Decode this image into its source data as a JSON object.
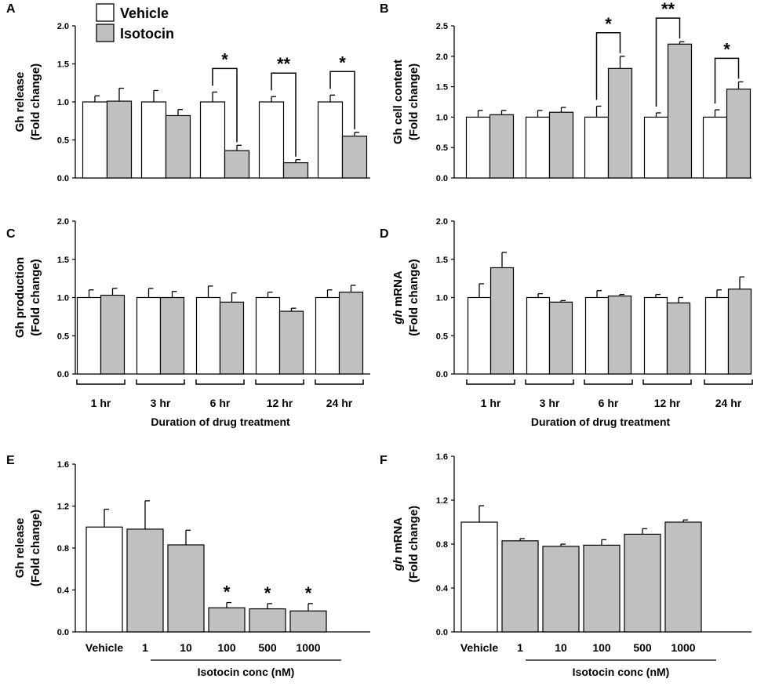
{
  "figure": {
    "legend": [
      {
        "label": "Vehicle",
        "color": "#ffffff"
      },
      {
        "label": "Isotocin",
        "color": "#c0c0c0"
      }
    ],
    "colors": {
      "vehicle": "#ffffff",
      "isotocin": "#c0c0c0",
      "stroke": "#000000"
    }
  },
  "chart_data": [
    {
      "panel": "A",
      "type": "bar",
      "ylabel_lines": [
        "Gh release",
        "(Fold change)"
      ],
      "categories": [
        "1 hr",
        "3 hr",
        "6 hr",
        "12 hr",
        "24 hr"
      ],
      "ylim": [
        0,
        2.0
      ],
      "yticks": [
        "0.0",
        "0.5",
        "1.0",
        "1.5",
        "2.0"
      ],
      "series": [
        {
          "name": "Vehicle",
          "values": [
            1.0,
            1.0,
            1.0,
            1.0,
            1.0
          ],
          "errors": [
            0.08,
            0.15,
            0.13,
            0.07,
            0.09
          ]
        },
        {
          "name": "Isotocin",
          "values": [
            1.01,
            0.82,
            0.36,
            0.2,
            0.55
          ],
          "errors": [
            0.17,
            0.08,
            0.07,
            0.04,
            0.05
          ]
        }
      ],
      "significance": [
        null,
        null,
        "*",
        "**",
        "*"
      ],
      "xlabel": ""
    },
    {
      "panel": "B",
      "type": "bar",
      "ylabel_lines": [
        "Gh cell content",
        "(Fold change)"
      ],
      "categories": [
        "1 hr",
        "3 hr",
        "6 hr",
        "12 hr",
        "24 hr"
      ],
      "ylim": [
        0,
        2.5
      ],
      "yticks": [
        "0.0",
        "0.5",
        "1.0",
        "1.5",
        "2.0",
        "2.5"
      ],
      "series": [
        {
          "name": "Vehicle",
          "values": [
            1.0,
            1.0,
            1.0,
            1.0,
            1.0
          ],
          "errors": [
            0.11,
            0.11,
            0.18,
            0.07,
            0.12
          ]
        },
        {
          "name": "Isotocin",
          "values": [
            1.04,
            1.08,
            1.8,
            2.2,
            1.46
          ],
          "errors": [
            0.07,
            0.08,
            0.2,
            0.04,
            0.12
          ]
        }
      ],
      "significance": [
        null,
        null,
        "*",
        "**",
        "*"
      ],
      "xlabel": ""
    },
    {
      "panel": "C",
      "type": "bar",
      "ylabel_lines": [
        "Gh production",
        "(Fold change)"
      ],
      "categories": [
        "1 hr",
        "3 hr",
        "6 hr",
        "12 hr",
        "24 hr"
      ],
      "ylim": [
        0,
        2.0
      ],
      "yticks": [
        "0.0",
        "0.5",
        "1.0",
        "1.5",
        "2.0"
      ],
      "series": [
        {
          "name": "Vehicle",
          "values": [
            1.0,
            1.0,
            1.0,
            1.0,
            1.0
          ],
          "errors": [
            0.1,
            0.12,
            0.15,
            0.07,
            0.1
          ]
        },
        {
          "name": "Isotocin",
          "values": [
            1.03,
            1.0,
            0.94,
            0.82,
            1.07
          ],
          "errors": [
            0.09,
            0.08,
            0.12,
            0.04,
            0.09
          ]
        }
      ],
      "significance": [
        null,
        null,
        null,
        null,
        null
      ],
      "xlabel": "Duration of drug treatment"
    },
    {
      "panel": "D",
      "type": "bar",
      "ylabel_lines": [
        "gh mRNA",
        "(Fold change)"
      ],
      "ylabel_italic_prefix": "gh",
      "categories": [
        "1 hr",
        "3 hr",
        "6 hr",
        "12 hr",
        "24 hr"
      ],
      "ylim": [
        0,
        2.0
      ],
      "yticks": [
        "0.0",
        "0.5",
        "1.0",
        "1.5",
        "2.0"
      ],
      "series": [
        {
          "name": "Vehicle",
          "values": [
            1.0,
            1.0,
            1.0,
            1.0,
            1.0
          ],
          "errors": [
            0.18,
            0.05,
            0.09,
            0.04,
            0.1
          ]
        },
        {
          "name": "Isotocin",
          "values": [
            1.39,
            0.94,
            1.02,
            0.93,
            1.11
          ],
          "errors": [
            0.2,
            0.02,
            0.02,
            0.07,
            0.16
          ]
        }
      ],
      "significance": [
        null,
        null,
        null,
        null,
        null
      ],
      "xlabel": "Duration of drug treatment"
    },
    {
      "panel": "E",
      "type": "bar",
      "ylabel_lines": [
        "Gh release",
        "(Fold change)"
      ],
      "categories": [
        "Vehicle",
        "1",
        "10",
        "100",
        "500",
        "1000"
      ],
      "ylim": [
        0,
        1.6
      ],
      "yticks": [
        "0.0",
        "0.4",
        "0.8",
        "1.2",
        "1.6"
      ],
      "values": [
        1.0,
        0.98,
        0.83,
        0.23,
        0.22,
        0.2
      ],
      "errors": [
        0.17,
        0.27,
        0.14,
        0.05,
        0.05,
        0.07
      ],
      "significance": [
        null,
        null,
        null,
        "*",
        "*",
        "*"
      ],
      "xlabel": "Isotocin conc (nM)"
    },
    {
      "panel": "F",
      "type": "bar",
      "ylabel_lines": [
        "gh mRNA",
        "(Fold change)"
      ],
      "ylabel_italic_prefix": "gh",
      "categories": [
        "Vehicle",
        "1",
        "10",
        "100",
        "500",
        "1000"
      ],
      "ylim": [
        0,
        1.6
      ],
      "yticks": [
        "0.0",
        "0.4",
        "0.8",
        "1.2",
        "1.6"
      ],
      "values": [
        1.0,
        0.83,
        0.78,
        0.79,
        0.89,
        1.0
      ],
      "errors": [
        0.15,
        0.02,
        0.02,
        0.05,
        0.05,
        0.02
      ],
      "significance": [
        null,
        null,
        null,
        null,
        null,
        null
      ],
      "xlabel": "Isotocin conc (nM)"
    }
  ]
}
